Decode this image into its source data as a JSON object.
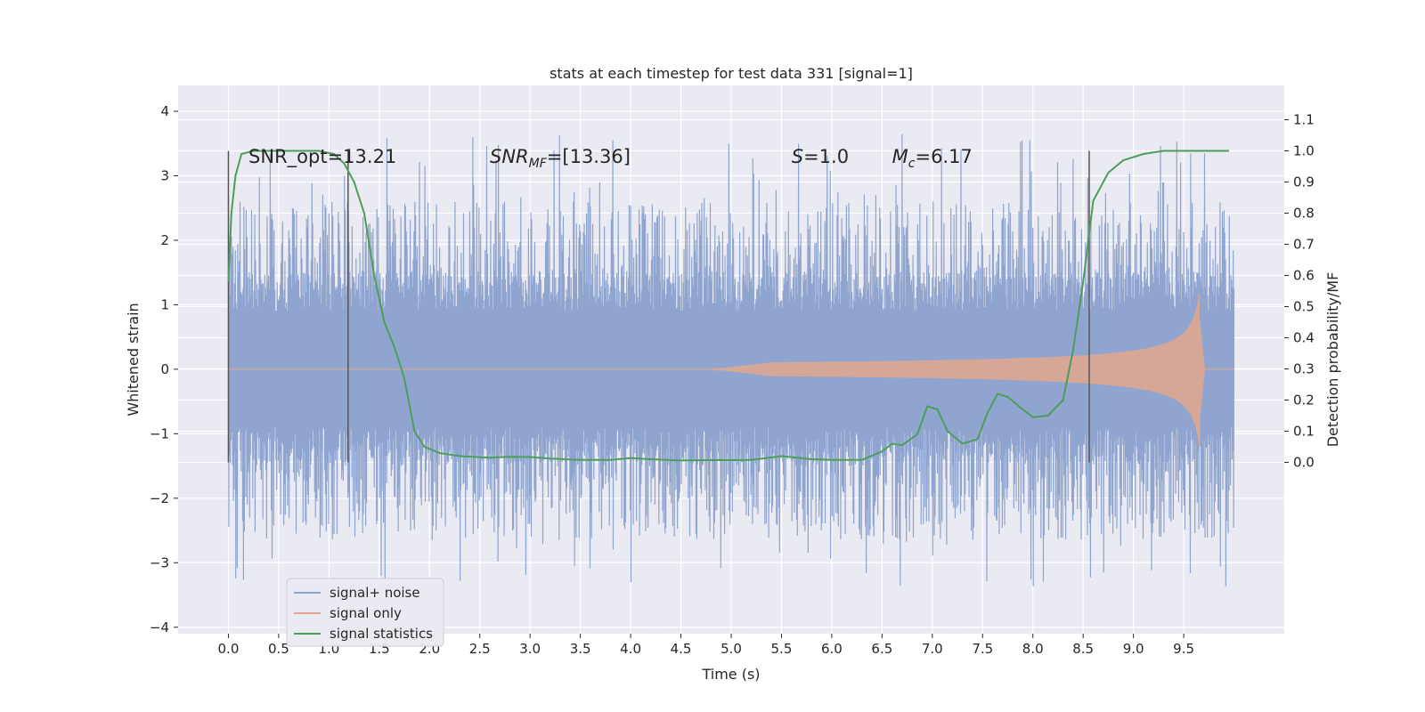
{
  "chart_data": {
    "type": "line",
    "title": "stats at each timestep for test data 331 [signal=1]",
    "xlabel": "Time (s)",
    "ylabel": "Whitened strain",
    "y2label": "Detection probability/MF",
    "xlim": [
      -0.5,
      10.5
    ],
    "ylim": [
      -4.1,
      4.4
    ],
    "y2lim": [
      -0.55,
      1.21
    ],
    "x_ticks": [
      "0.0",
      "0.5",
      "1.0",
      "1.5",
      "2.0",
      "2.5",
      "3.0",
      "3.5",
      "4.0",
      "4.5",
      "5.0",
      "5.5",
      "6.0",
      "6.5",
      "7.0",
      "7.5",
      "8.0",
      "8.5",
      "9.0",
      "9.5"
    ],
    "y_ticks": [
      "4",
      "3",
      "2",
      "1",
      "0",
      "−1",
      "−2",
      "−3",
      "−4"
    ],
    "y2_ticks": [
      "1.1",
      "1.0",
      "0.9",
      "0.8",
      "0.7",
      "0.6",
      "0.5",
      "0.4",
      "0.3",
      "0.2",
      "0.1",
      "0.0"
    ],
    "grid": true,
    "legend_position": "lower-left",
    "annotations": [
      {
        "text": "SNR_opt=13.21",
        "x": 0.2,
        "y": 3.2
      },
      {
        "text": "SNR",
        "sub": "MF",
        "tail": "=[13.36]",
        "x": 2.6,
        "y": 3.2
      },
      {
        "text": "S",
        "tail": "=1.0",
        "x": 5.6,
        "y": 3.2
      },
      {
        "text": "M",
        "sub": "c",
        "tail": "=6.17",
        "x": 6.6,
        "y": 3.2
      }
    ],
    "vertical_markers": [
      0.0,
      1.19,
      8.56
    ],
    "series": [
      {
        "name": "signal+ noise",
        "color": "#8fa5cf",
        "t_range": [
          0.0,
          10.0
        ],
        "envelope": {
          "core_upper": 1.4,
          "core_lower": -1.55,
          "peak_max": 4.05,
          "peak_min": -3.7
        }
      },
      {
        "name": "signal only",
        "color": "#e3a68c",
        "t_range": [
          0.0,
          10.0
        ],
        "chirp": {
          "start": 4.8,
          "merger": 9.66,
          "peak_amplitude": 1.25
        }
      },
      {
        "name": "signal statistics",
        "color": "#4c9e5b",
        "axis": "right",
        "points": [
          [
            0.0,
            0.58
          ],
          [
            0.03,
            0.8
          ],
          [
            0.07,
            0.92
          ],
          [
            0.13,
            0.99
          ],
          [
            0.25,
            1.0
          ],
          [
            0.5,
            1.0
          ],
          [
            0.9,
            1.0
          ],
          [
            1.05,
            0.99
          ],
          [
            1.15,
            0.96
          ],
          [
            1.25,
            0.9
          ],
          [
            1.35,
            0.8
          ],
          [
            1.45,
            0.6
          ],
          [
            1.55,
            0.45
          ],
          [
            1.65,
            0.37
          ],
          [
            1.75,
            0.27
          ],
          [
            1.85,
            0.1
          ],
          [
            1.95,
            0.05
          ],
          [
            2.1,
            0.03
          ],
          [
            2.3,
            0.02
          ],
          [
            2.6,
            0.015
          ],
          [
            2.8,
            0.018
          ],
          [
            3.0,
            0.017
          ],
          [
            3.2,
            0.012
          ],
          [
            3.5,
            0.008
          ],
          [
            3.8,
            0.008
          ],
          [
            4.0,
            0.014
          ],
          [
            4.2,
            0.01
          ],
          [
            4.5,
            0.006
          ],
          [
            4.8,
            0.007
          ],
          [
            5.0,
            0.007
          ],
          [
            5.2,
            0.008
          ],
          [
            5.5,
            0.02
          ],
          [
            5.8,
            0.01
          ],
          [
            6.0,
            0.008
          ],
          [
            6.3,
            0.008
          ],
          [
            6.5,
            0.035
          ],
          [
            6.6,
            0.06
          ],
          [
            6.7,
            0.055
          ],
          [
            6.85,
            0.09
          ],
          [
            6.95,
            0.18
          ],
          [
            7.05,
            0.17
          ],
          [
            7.15,
            0.1
          ],
          [
            7.3,
            0.06
          ],
          [
            7.45,
            0.075
          ],
          [
            7.55,
            0.16
          ],
          [
            7.65,
            0.22
          ],
          [
            7.75,
            0.21
          ],
          [
            7.9,
            0.17
          ],
          [
            8.0,
            0.145
          ],
          [
            8.15,
            0.15
          ],
          [
            8.3,
            0.2
          ],
          [
            8.4,
            0.36
          ],
          [
            8.5,
            0.58
          ],
          [
            8.6,
            0.84
          ],
          [
            8.75,
            0.93
          ],
          [
            8.9,
            0.97
          ],
          [
            9.1,
            0.99
          ],
          [
            9.3,
            1.0
          ],
          [
            9.7,
            1.0
          ],
          [
            9.95,
            1.0
          ]
        ]
      }
    ]
  }
}
